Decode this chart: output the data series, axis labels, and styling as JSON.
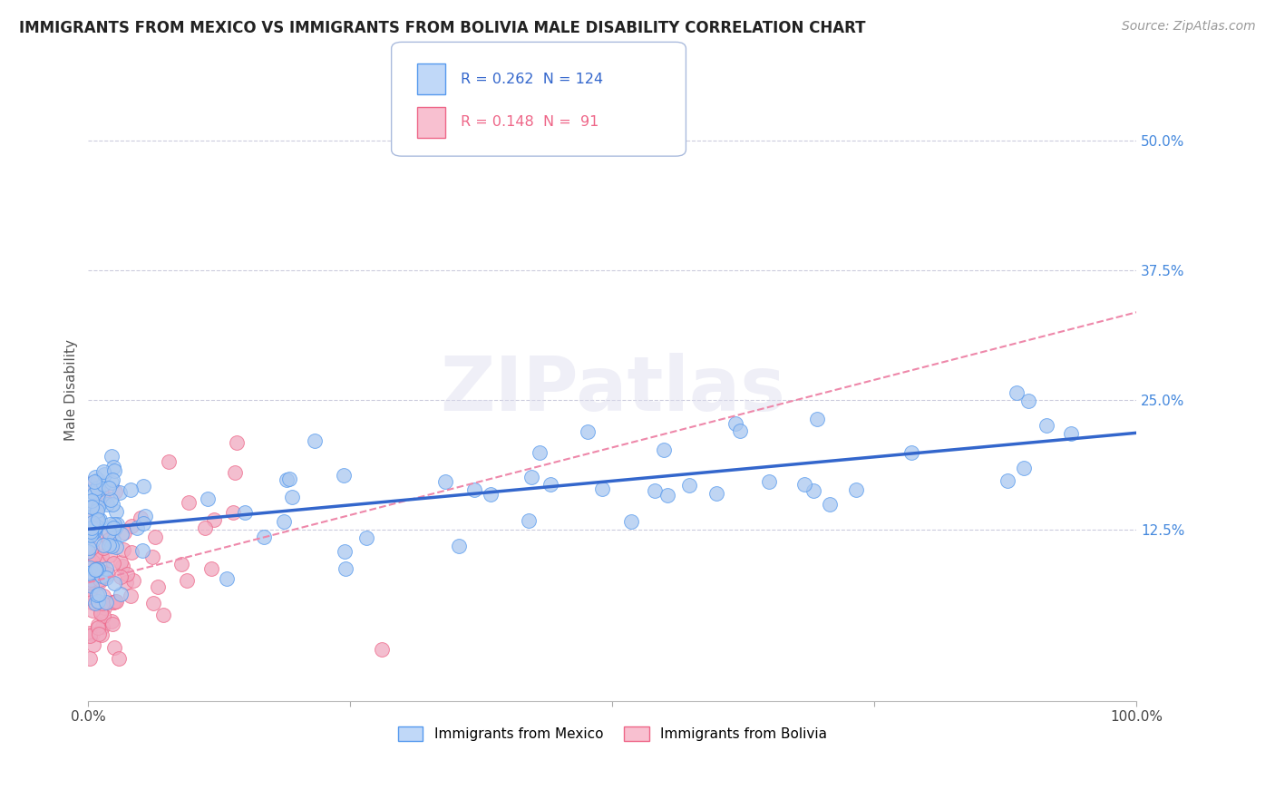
{
  "title": "IMMIGRANTS FROM MEXICO VS IMMIGRANTS FROM BOLIVIA MALE DISABILITY CORRELATION CHART",
  "source": "Source: ZipAtlas.com",
  "ylabel": "Male Disability",
  "yticks": [
    0.0,
    0.125,
    0.25,
    0.375,
    0.5
  ],
  "ytick_labels": [
    "",
    "12.5%",
    "25.0%",
    "37.5%",
    "50.0%"
  ],
  "xlim": [
    0.0,
    1.0
  ],
  "ylim": [
    -0.04,
    0.56
  ],
  "mexico_R": 0.262,
  "mexico_N": 124,
  "bolivia_R": 0.148,
  "bolivia_N": 91,
  "mexico_color": "#aac8f0",
  "bolivia_color": "#f0a8c0",
  "mexico_edge_color": "#5599ee",
  "bolivia_edge_color": "#ee6688",
  "mexico_line_color": "#3366cc",
  "bolivia_line_color": "#ee88aa",
  "legend_mexico_face": "#c0d8f8",
  "legend_bolivia_face": "#f8c0d0",
  "background_color": "#ffffff",
  "watermark_text": "ZIPatlas",
  "title_fontsize": 12,
  "source_fontsize": 10,
  "axis_tick_color": "#4488dd",
  "grid_color": "#ccccdd"
}
